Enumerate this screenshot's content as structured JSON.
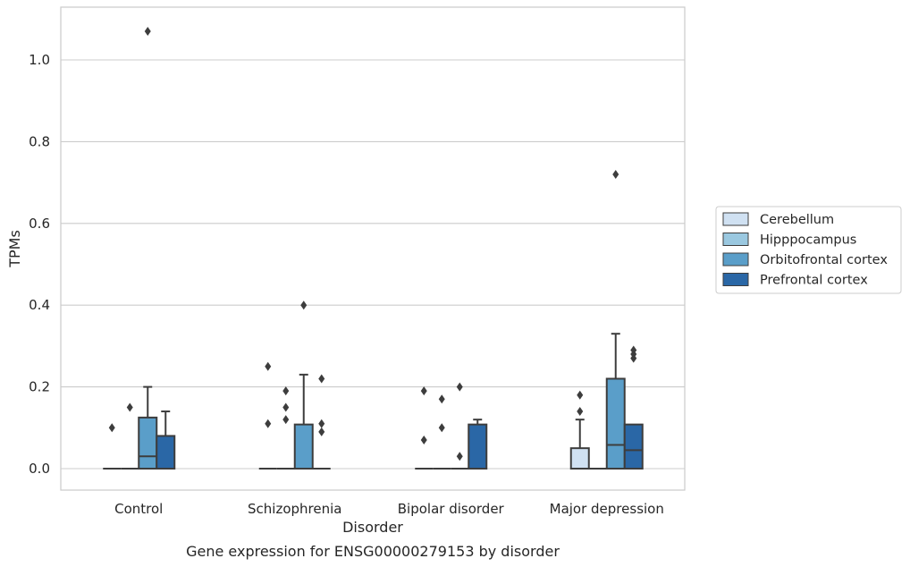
{
  "chart_data": {
    "type": "box",
    "title": "",
    "caption": "Gene expression for ENSG00000279153 by disorder",
    "xlabel": "Disorder",
    "ylabel": "TPMs",
    "ylim": [
      -0.052,
      1.13
    ],
    "yticks": [
      0.0,
      0.2,
      0.4,
      0.6,
      0.8,
      1.0
    ],
    "ytick_labels": [
      "0.0",
      "0.2",
      "0.4",
      "0.6",
      "0.8",
      "1.0"
    ],
    "grid": "horizontal",
    "legend_position": "right",
    "categories": [
      "Control",
      "Schizophrenia",
      "Bipolar disorder",
      "Major depression"
    ],
    "series": [
      {
        "name": "Cerebellum",
        "color": "#d0e1f2",
        "boxes": [
          {
            "q1": 0,
            "median": 0,
            "q3": 0,
            "whisker_low": 0,
            "whisker_high": 0,
            "outliers": [
              0.1
            ]
          },
          {
            "q1": 0,
            "median": 0,
            "q3": 0,
            "whisker_low": 0,
            "whisker_high": 0,
            "outliers": [
              0.11,
              0.25
            ]
          },
          {
            "q1": 0,
            "median": 0,
            "q3": 0,
            "whisker_low": 0,
            "whisker_high": 0,
            "outliers": [
              0.07,
              0.19
            ]
          },
          {
            "q1": 0,
            "median": 0,
            "q3": 0.05,
            "whisker_low": 0,
            "whisker_high": 0.12,
            "outliers": [
              0.14,
              0.18
            ]
          }
        ]
      },
      {
        "name": "Hipppocampus",
        "color": "#9ac8e0",
        "boxes": [
          {
            "q1": 0,
            "median": 0,
            "q3": 0,
            "whisker_low": 0,
            "whisker_high": 0,
            "outliers": [
              0.15
            ]
          },
          {
            "q1": 0,
            "median": 0,
            "q3": 0,
            "whisker_low": 0,
            "whisker_high": 0,
            "outliers": [
              0.12,
              0.15,
              0.19
            ]
          },
          {
            "q1": 0,
            "median": 0,
            "q3": 0,
            "whisker_low": 0,
            "whisker_high": 0,
            "outliers": [
              0.1,
              0.17
            ]
          },
          {
            "q1": 0,
            "median": 0,
            "q3": 0,
            "whisker_low": 0,
            "whisker_high": 0,
            "outliers": []
          }
        ]
      },
      {
        "name": "Orbitofrontal cortex",
        "color": "#5a9ec9",
        "boxes": [
          {
            "q1": 0,
            "median": 0.03,
            "q3": 0.125,
            "whisker_low": 0,
            "whisker_high": 0.2,
            "outliers": [
              1.07
            ]
          },
          {
            "q1": 0,
            "median": 0,
            "q3": 0.108,
            "whisker_low": 0,
            "whisker_high": 0.23,
            "outliers": [
              0.4
            ]
          },
          {
            "q1": 0,
            "median": 0,
            "q3": 0,
            "whisker_low": 0,
            "whisker_high": 0,
            "outliers": [
              0.03,
              0.2
            ]
          },
          {
            "q1": 0,
            "median": 0.058,
            "q3": 0.22,
            "whisker_low": 0,
            "whisker_high": 0.33,
            "outliers": [
              0.72
            ]
          }
        ]
      },
      {
        "name": "Prefrontal cortex",
        "color": "#2a67a6",
        "boxes": [
          {
            "q1": 0,
            "median": 0,
            "q3": 0.08,
            "whisker_low": 0,
            "whisker_high": 0.14,
            "outliers": []
          },
          {
            "q1": 0,
            "median": 0,
            "q3": 0,
            "whisker_low": 0,
            "whisker_high": 0,
            "outliers": [
              0.09,
              0.11,
              0.22
            ]
          },
          {
            "q1": 0,
            "median": 0,
            "q3": 0.108,
            "whisker_low": 0,
            "whisker_high": 0.12,
            "outliers": []
          },
          {
            "q1": 0,
            "median": 0.045,
            "q3": 0.108,
            "whisker_low": 0,
            "whisker_high": 0.108,
            "outliers": [
              0.27,
              0.28,
              0.29
            ]
          }
        ]
      }
    ]
  }
}
